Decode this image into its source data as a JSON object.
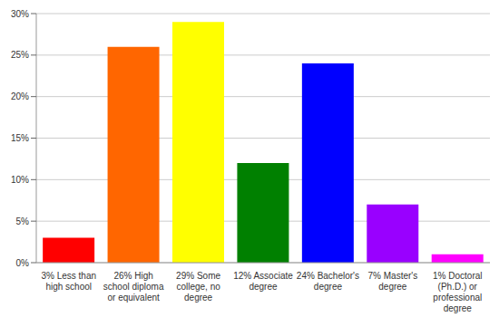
{
  "chart_data": {
    "type": "bar",
    "categories": [
      "3% Less than high school",
      "26% High school diploma or equivalent",
      "29% Some college, no degree",
      "12% Associate degree",
      "24% Bachelor's degree",
      "7% Master's degree",
      "1% Doctoral (Ph.D.) or professional degree"
    ],
    "values": [
      3,
      26,
      29,
      12,
      24,
      7,
      1
    ],
    "colors": [
      "#ff0000",
      "#ff6600",
      "#ffff00",
      "#008000",
      "#0000ff",
      "#9900ff",
      "#ff00ff"
    ],
    "ylim": [
      0,
      30
    ],
    "yticks": [
      {
        "value": 0,
        "label": "0%"
      },
      {
        "value": 5,
        "label": "5%"
      },
      {
        "value": 10,
        "label": "10%"
      },
      {
        "value": 15,
        "label": "15%"
      },
      {
        "value": 20,
        "label": "20%"
      },
      {
        "value": 25,
        "label": "25%"
      },
      {
        "value": 30,
        "label": "30%"
      }
    ],
    "grid": true
  }
}
